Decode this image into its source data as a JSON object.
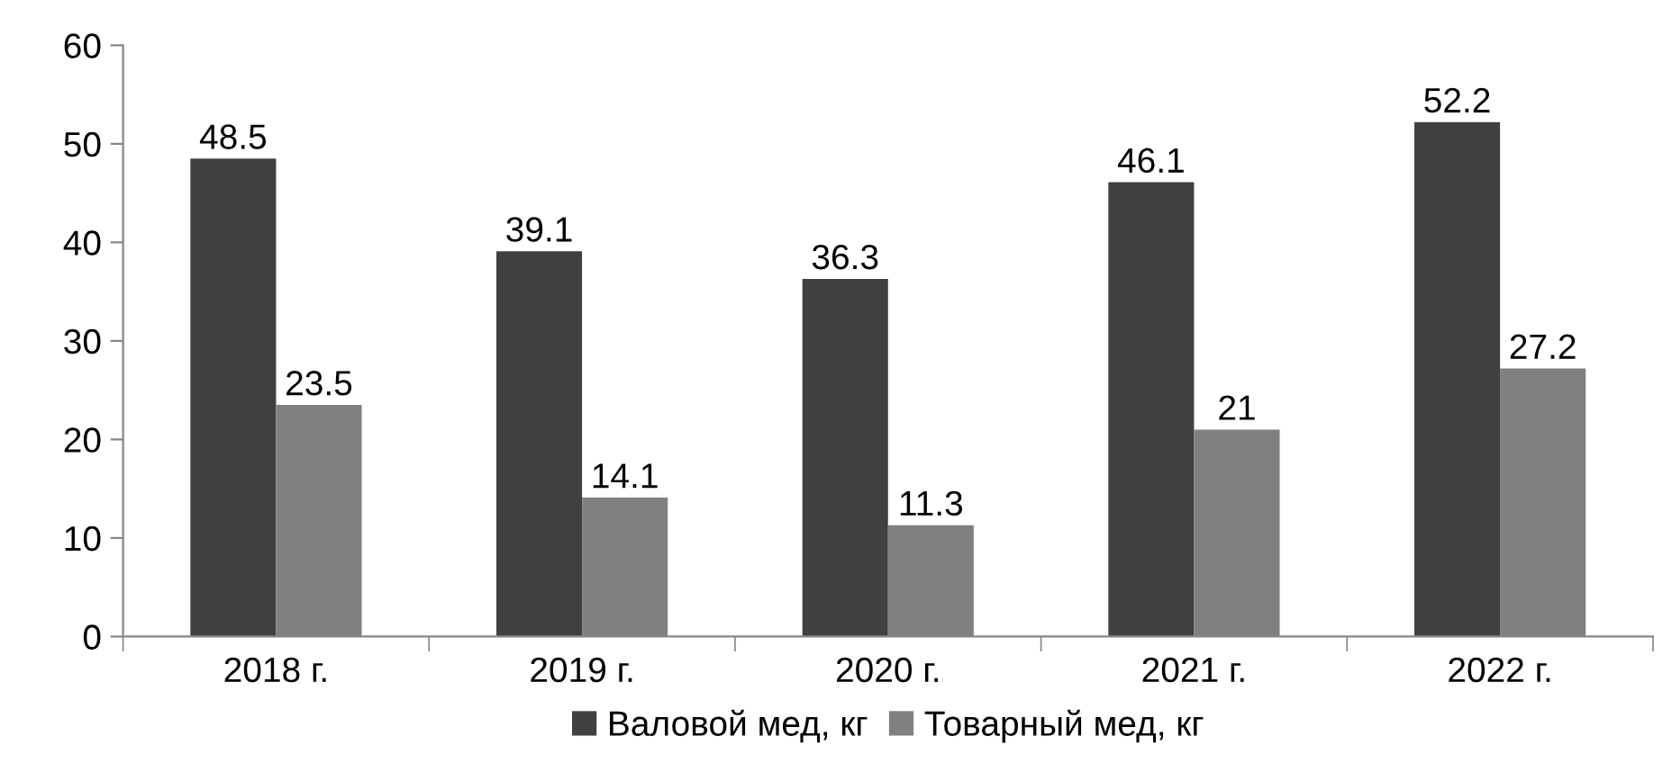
{
  "chart_data": {
    "type": "bar",
    "categories": [
      "2018 г.",
      "2019 г.",
      "2020 г.",
      "2021 г.",
      "2022 г."
    ],
    "series": [
      {
        "name": "Валовой мед, кг",
        "color": "#404040",
        "values": [
          48.5,
          39.1,
          36.3,
          46.1,
          52.2
        ]
      },
      {
        "name": "Товарный мед, кг",
        "color": "#808080",
        "values": [
          23.5,
          14.1,
          11.3,
          21,
          27.2
        ]
      }
    ],
    "ylim": [
      0,
      60
    ],
    "yticks": [
      0,
      10,
      20,
      30,
      40,
      50,
      60
    ],
    "grid": false,
    "legend": "bottom",
    "data_labels": true
  }
}
